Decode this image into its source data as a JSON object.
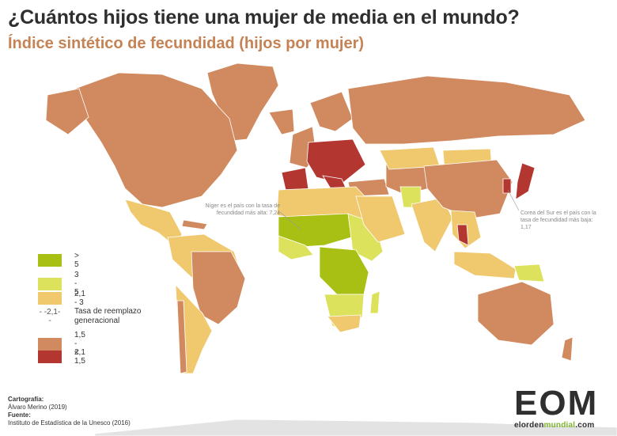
{
  "title": "¿Cuántos hijos tiene una mujer de media en el mundo?",
  "subtitle": "Índice sintético de fecundidad (hijos por mujer)",
  "colors": {
    "gt5": "#a8bf13",
    "r3_5": "#dde25c",
    "r21_3": "#f0c96f",
    "r15_21": "#d18a5f",
    "lt15": "#b33630",
    "ocean": "#ffffff",
    "border": "#ffffff"
  },
  "legend": {
    "gt5": "> 5",
    "r3_5": "3 - 5",
    "r21_3": "2,1 - 3",
    "replacement_symbol": "- -2,1- -",
    "replacement_label": "Tasa de reemplazo generacional",
    "r15_21": "1,5 - 2,1",
    "lt15": "< 1,5"
  },
  "notes": {
    "niger": "Níger es el país con la tasa de fecundidad más alta: 7,24",
    "korea": "Corea del Sur es el país con la tasa de fecundidad más baja: 1,17"
  },
  "credits": {
    "cartography_heading": "Cartografía:",
    "cartography_name": "Álvaro Merino (2019)",
    "source_heading": "Fuente:",
    "source_name": "Instituto de Estadística de la Unesco (2016)"
  },
  "logo": {
    "word": "EOM",
    "url_part1": "elorden",
    "url_part2": "mundial",
    "url_part3": ".com"
  }
}
